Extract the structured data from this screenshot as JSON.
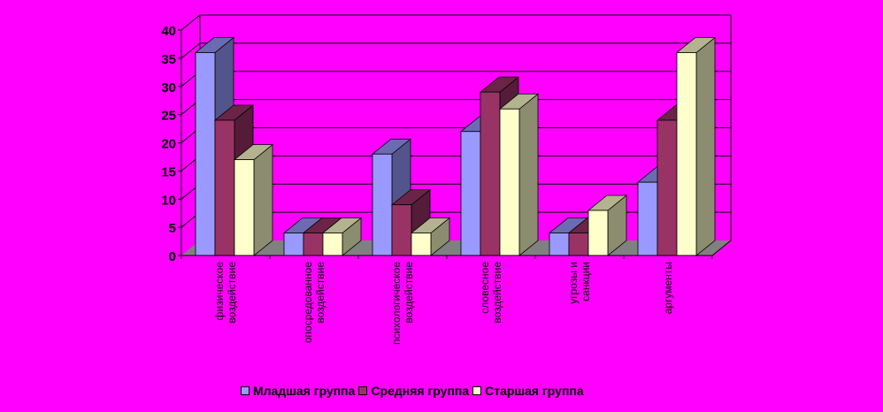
{
  "chart_data": {
    "type": "bar",
    "categories": [
      [
        "физическое",
        "воздействие"
      ],
      [
        "опосредованное",
        "воздействие"
      ],
      [
        "психологическое",
        "воздействие"
      ],
      [
        "словесное",
        "воздействие"
      ],
      [
        "угрозы и",
        "санкции"
      ],
      [
        "аргументы"
      ]
    ],
    "series": [
      {
        "name": "Младшая группа",
        "values": [
          36,
          4,
          18,
          22,
          4,
          13
        ],
        "color": "#9999FF"
      },
      {
        "name": "Средняя группа",
        "values": [
          24,
          4,
          9,
          29,
          4,
          24
        ],
        "color": "#993366"
      },
      {
        "name": "Старшая группа",
        "values": [
          17,
          4,
          4,
          26,
          8,
          36
        ],
        "color": "#FFFFCC"
      }
    ],
    "yticks": [
      "0",
      "5",
      "10",
      "15",
      "20",
      "25",
      "30",
      "35",
      "40"
    ],
    "ylim": [
      0,
      40
    ],
    "grid": true,
    "legend_position": "bottom",
    "wall_color": "#FF00FF",
    "floor_color": "#808080"
  }
}
